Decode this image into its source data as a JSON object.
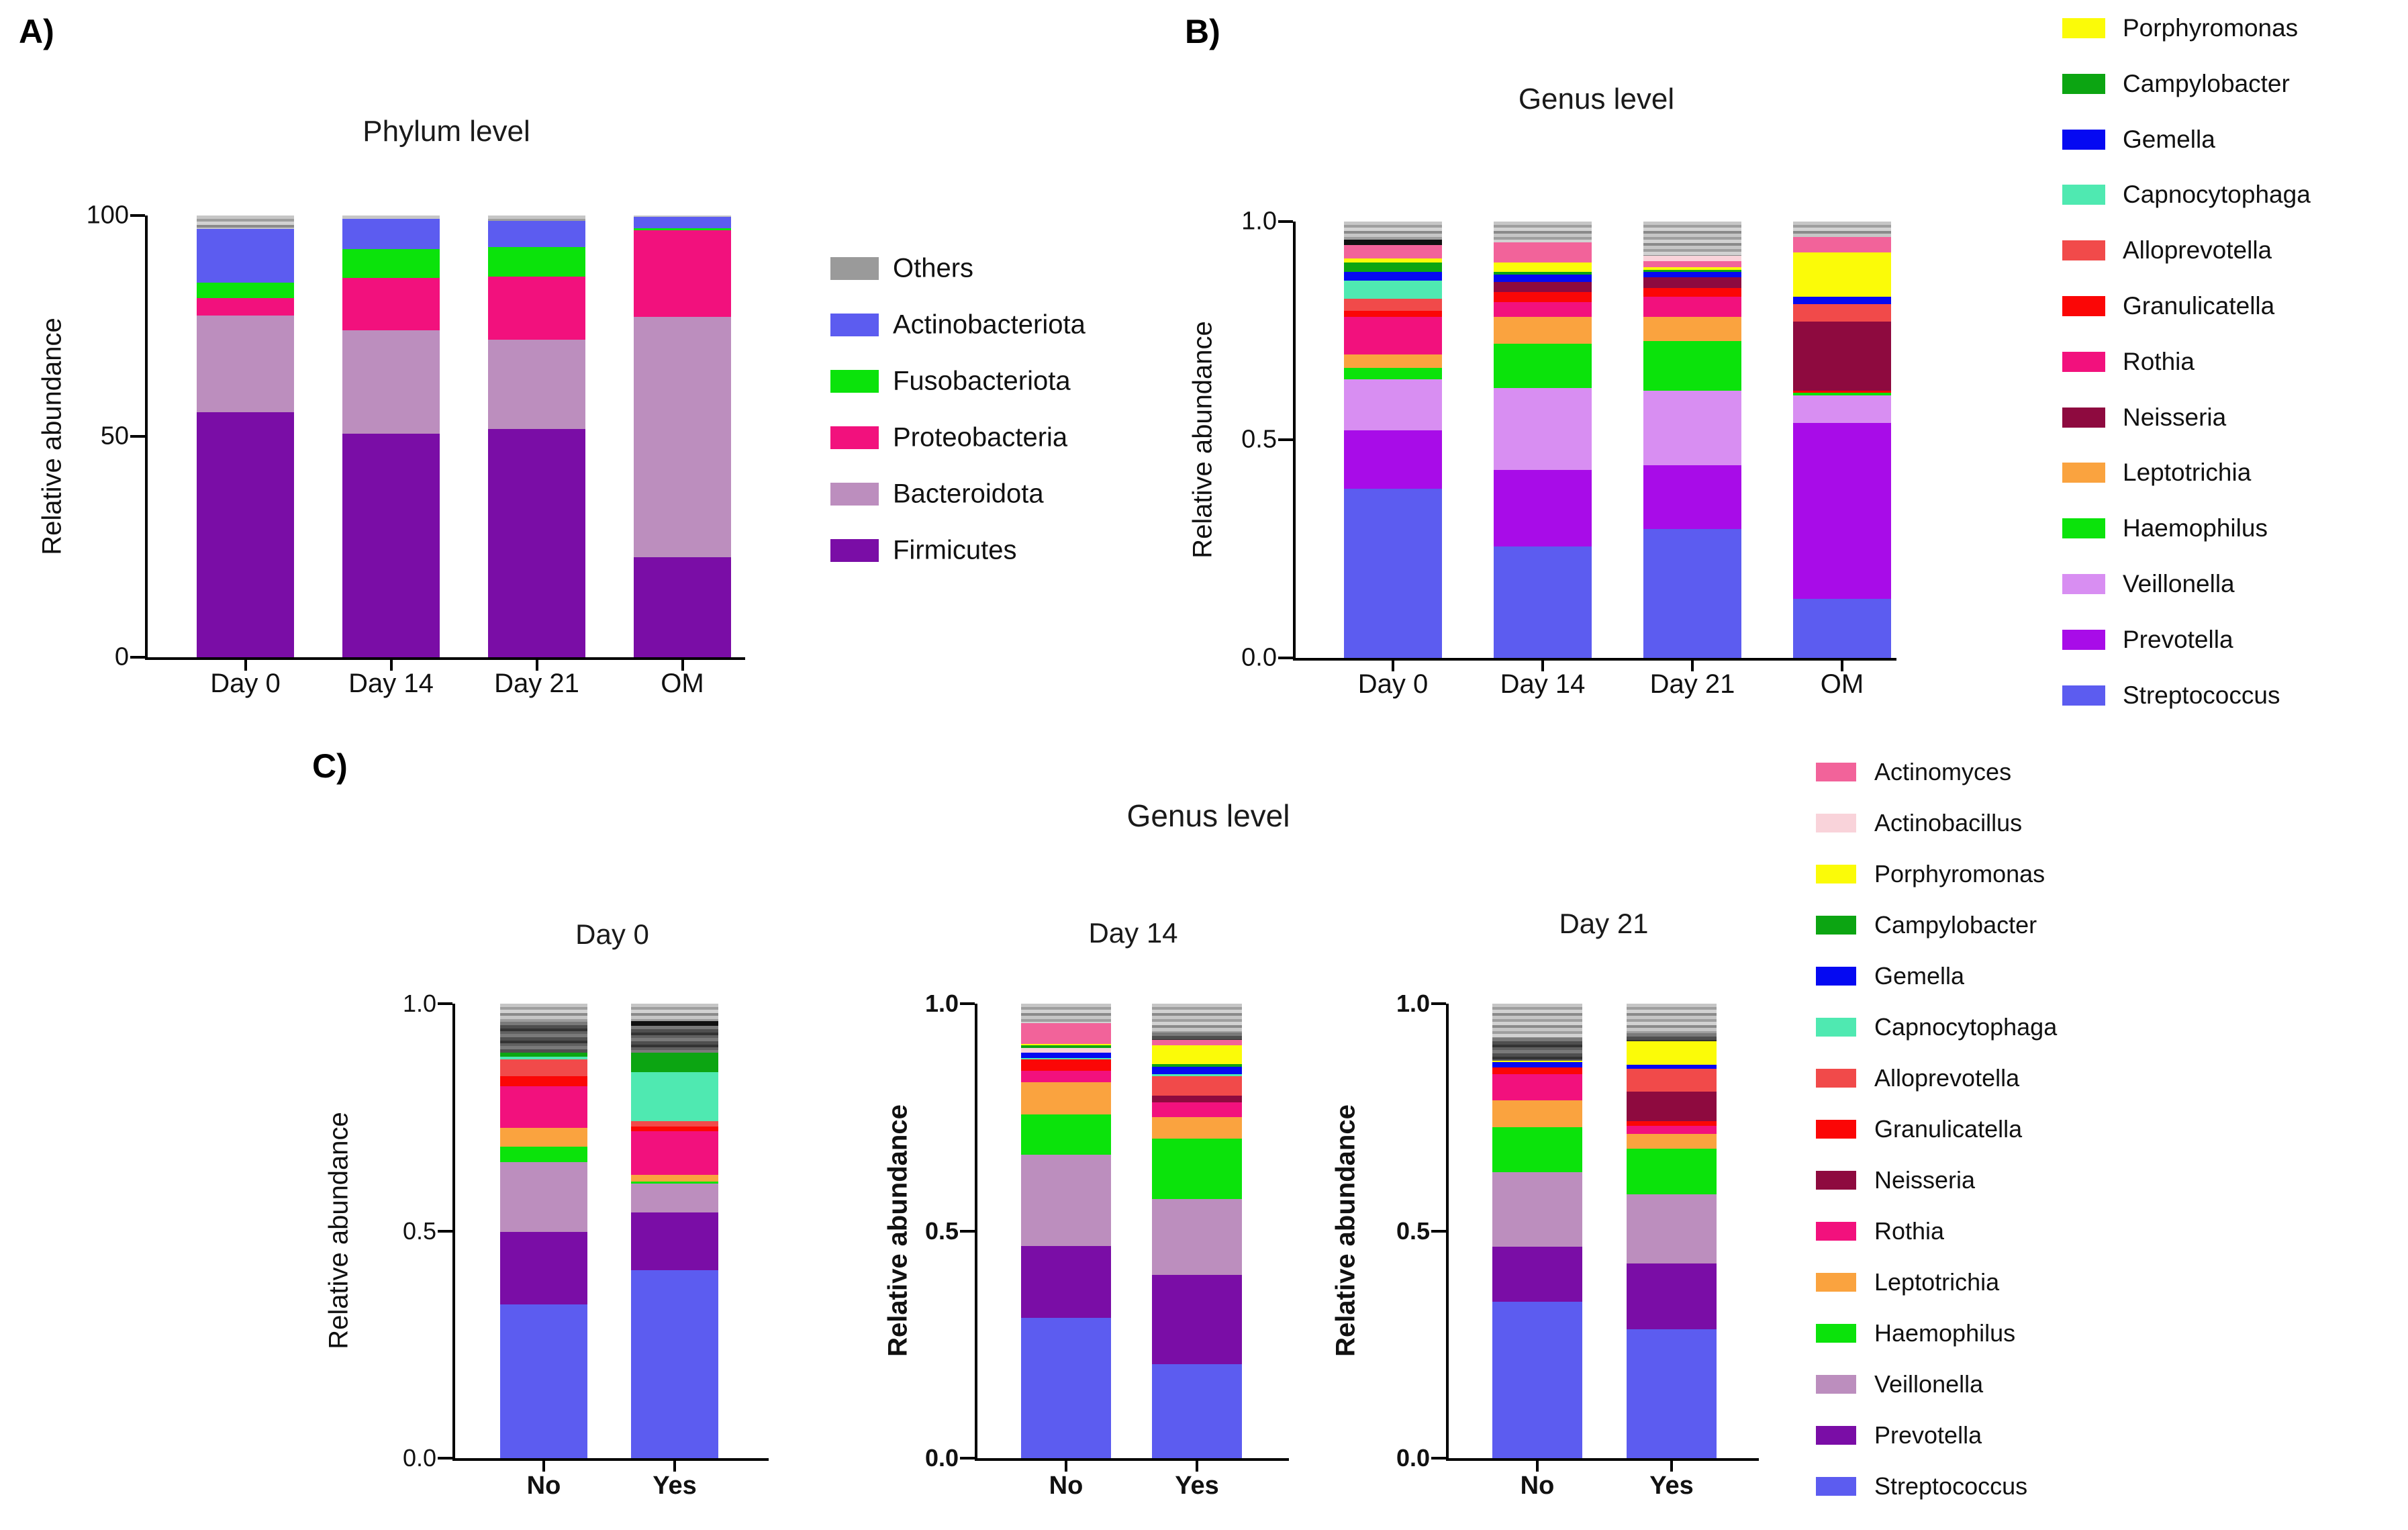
{
  "panels": {
    "a_label": "A)",
    "b_label": "B)",
    "c_label": "C)",
    "c_super_title": "Genus level"
  },
  "palette": {
    "streptococcus": "#5c5cf0",
    "prevotella": "#a80ce8",
    "prevotella_dark": "#7a0da6",
    "veillonella": "#d88ef2",
    "veillonella_mauve": "#bc8ebe",
    "haemophilus": "#0be30b",
    "leptotrichia": "#faa33f",
    "rothia": "#f2117d",
    "granulicatella": "#fb0606",
    "alloprevotella": "#f14a4a",
    "capnocytophaga": "#4fe9b1",
    "gemella": "#0509f2",
    "campylobacter": "#0ca512",
    "porphyromonas": "#fbfb08",
    "neisseria": "#8e0a3f",
    "actinomyces": "#f2639a",
    "actinobacillus": "#f9d3da",
    "firmicutes": "#7a0da6",
    "bacteroidota": "#bc8ebe",
    "proteobacteria": "#f2117d",
    "fusobacteriota": "#0be30b",
    "actinobacteriota": "#5c5cf0",
    "others": "#9a9a9a",
    "others_dark": "#4f4f4f",
    "black": "#111111"
  },
  "chart_data": [
    {
      "id": "A",
      "type": "stacked-bar",
      "title": "Phylum level",
      "ylabel": "Relative abundance",
      "ylim": [
        0,
        100
      ],
      "unit": 100,
      "yticks": [
        {
          "value": 100,
          "label": "100"
        },
        {
          "value": 50,
          "label": "50"
        },
        {
          "value": 0,
          "label": "0"
        }
      ],
      "categories": [
        "Day 0",
        "Day 14",
        "Day 21",
        "OM"
      ],
      "bars": [
        [
          [
            "firmicutes",
            55.5
          ],
          [
            "bacteroidota",
            21.9
          ],
          [
            "proteobacteria",
            3.9
          ],
          [
            "fusobacteriota",
            3.5
          ],
          [
            "actinobacteriota",
            12.2
          ],
          [
            "others",
            3.0
          ]
        ],
        [
          [
            "firmicutes",
            50.6
          ],
          [
            "bacteroidota",
            23.4
          ],
          [
            "proteobacteria",
            11.9
          ],
          [
            "fusobacteriota",
            6.5
          ],
          [
            "actinobacteriota",
            6.8
          ],
          [
            "others",
            0.8
          ]
        ],
        [
          [
            "firmicutes",
            51.7
          ],
          [
            "bacteroidota",
            20.2
          ],
          [
            "proteobacteria",
            14.3
          ],
          [
            "fusobacteriota",
            6.6
          ],
          [
            "actinobacteriota",
            6.0
          ],
          [
            "others",
            1.2
          ]
        ],
        [
          [
            "firmicutes",
            22.6
          ],
          [
            "bacteroidota",
            54.4
          ],
          [
            "proteobacteria",
            19.6
          ],
          [
            "fusobacteriota",
            0.5
          ],
          [
            "actinobacteriota",
            2.6
          ],
          [
            "others",
            0.3
          ]
        ]
      ]
    },
    {
      "id": "B",
      "type": "stacked-bar",
      "title": "Genus level",
      "ylabel": "Relative abundance",
      "ylim": [
        0,
        1
      ],
      "unit": 1,
      "yticks": [
        {
          "value": 1.0,
          "label": "1.0"
        },
        {
          "value": 0.5,
          "label": "0.5"
        },
        {
          "value": 0.0,
          "label": "0.0"
        }
      ],
      "categories": [
        "Day 0",
        "Day 14",
        "Day 21",
        "OM"
      ],
      "bars": [
        [
          [
            "streptococcus",
            0.388
          ],
          [
            "prevotella",
            0.134
          ],
          [
            "veillonella",
            0.117
          ],
          [
            "haemophilus",
            0.025
          ],
          [
            "leptotrichia",
            0.031
          ],
          [
            "rothia",
            0.086
          ],
          [
            "granulicatella",
            0.015
          ],
          [
            "alloprevotella",
            0.027
          ],
          [
            "capnocytophaga",
            0.042
          ],
          [
            "gemella",
            0.02
          ],
          [
            "campylobacter",
            0.022
          ],
          [
            "porphyromonas",
            0.009
          ],
          [
            "actinomyces",
            0.031
          ],
          [
            "black",
            0.011
          ],
          [
            "others",
            0.042
          ]
        ],
        [
          [
            "streptococcus",
            0.255
          ],
          [
            "prevotella",
            0.176
          ],
          [
            "veillonella",
            0.187
          ],
          [
            "haemophilus",
            0.102
          ],
          [
            "leptotrichia",
            0.062
          ],
          [
            "rothia",
            0.034
          ],
          [
            "granulicatella",
            0.023
          ],
          [
            "neisseria",
            0.023
          ],
          [
            "gemella",
            0.017
          ],
          [
            "campylobacter",
            0.006
          ],
          [
            "porphyromonas",
            0.022
          ],
          [
            "actinomyces",
            0.045
          ],
          [
            "others",
            0.048
          ]
        ],
        [
          [
            "streptococcus",
            0.295
          ],
          [
            "prevotella",
            0.147
          ],
          [
            "veillonella",
            0.17
          ],
          [
            "haemophilus",
            0.114
          ],
          [
            "leptotrichia",
            0.056
          ],
          [
            "rothia",
            0.046
          ],
          [
            "granulicatella",
            0.02
          ],
          [
            "neisseria",
            0.025
          ],
          [
            "gemella",
            0.011
          ],
          [
            "campylobacter",
            0.005
          ],
          [
            "porphyromonas",
            0.006
          ],
          [
            "actinomyces",
            0.015
          ],
          [
            "actinobacillus",
            0.011
          ],
          [
            "others",
            0.079
          ]
        ],
        [
          [
            "streptococcus",
            0.136
          ],
          [
            "prevotella",
            0.403
          ],
          [
            "veillonella",
            0.062
          ],
          [
            "haemophilus",
            0.006
          ],
          [
            "granulicatella",
            0.005
          ],
          [
            "neisseria",
            0.159
          ],
          [
            "alloprevotella",
            0.04
          ],
          [
            "gemella",
            0.017
          ],
          [
            "porphyromonas",
            0.102
          ],
          [
            "actinomyces",
            0.034
          ],
          [
            "others",
            0.036
          ]
        ]
      ]
    },
    {
      "id": "C-Day0",
      "type": "stacked-bar",
      "title": "Day 0",
      "ylabel": "Relative abundance",
      "ylim": [
        0,
        1
      ],
      "unit": 1,
      "yticks": [
        {
          "value": 1.0,
          "label": "1.0"
        },
        {
          "value": 0.5,
          "label": "0.5"
        },
        {
          "value": 0.0,
          "label": "0.0"
        }
      ],
      "categories": [
        "No",
        "Yes"
      ],
      "bars": [
        [
          [
            "streptococcus",
            0.338
          ],
          [
            "prevotella_dark",
            0.16
          ],
          [
            "veillonella_mauve",
            0.153
          ],
          [
            "haemophilus",
            0.034
          ],
          [
            "leptotrichia",
            0.042
          ],
          [
            "rothia",
            0.091
          ],
          [
            "granulicatella",
            0.023
          ],
          [
            "alloprevotella",
            0.036
          ],
          [
            "capnocytophaga",
            0.007
          ],
          [
            "campylobacter",
            0.008
          ],
          [
            "others_dark",
            0.068
          ],
          [
            "others",
            0.04
          ]
        ],
        [
          [
            "streptococcus",
            0.414
          ],
          [
            "prevotella_dark",
            0.126
          ],
          [
            "veillonella_mauve",
            0.064
          ],
          [
            "haemophilus",
            0.004
          ],
          [
            "leptotrichia",
            0.016
          ],
          [
            "rothia",
            0.095
          ],
          [
            "granulicatella",
            0.011
          ],
          [
            "alloprevotella",
            0.012
          ],
          [
            "capnocytophaga",
            0.108
          ],
          [
            "campylobacter",
            0.043
          ],
          [
            "others_dark",
            0.059
          ],
          [
            "black",
            0.01
          ],
          [
            "others",
            0.038
          ]
        ]
      ]
    },
    {
      "id": "C-Day14",
      "type": "stacked-bar",
      "title": "Day 14",
      "ylabel": "Relative abundance",
      "ylim": [
        0,
        1
      ],
      "unit": 1,
      "yticks": [
        {
          "value": 1.0,
          "label": "1.0"
        },
        {
          "value": 0.5,
          "label": "0.5"
        },
        {
          "value": 0.0,
          "label": "0.0"
        }
      ],
      "categories": [
        "No",
        "Yes"
      ],
      "bars": [
        [
          [
            "streptococcus",
            0.309
          ],
          [
            "prevotella_dark",
            0.158
          ],
          [
            "veillonella_mauve",
            0.2
          ],
          [
            "haemophilus",
            0.09
          ],
          [
            "leptotrichia",
            0.07
          ],
          [
            "rothia",
            0.025
          ],
          [
            "granulicatella",
            0.025
          ],
          [
            "capnocytophaga",
            0.004
          ],
          [
            "gemella",
            0.012
          ],
          [
            "actinobacillus",
            0.01
          ],
          [
            "campylobacter",
            0.005
          ],
          [
            "porphyromonas",
            0.004
          ],
          [
            "actinomyces",
            0.045
          ],
          [
            "others",
            0.043
          ]
        ],
        [
          [
            "streptococcus",
            0.207
          ],
          [
            "prevotella_dark",
            0.197
          ],
          [
            "veillonella_mauve",
            0.166
          ],
          [
            "haemophilus",
            0.133
          ],
          [
            "leptotrichia",
            0.047
          ],
          [
            "rothia",
            0.033
          ],
          [
            "neisseria",
            0.015
          ],
          [
            "alloprevotella",
            0.042
          ],
          [
            "capnocytophaga",
            0.005
          ],
          [
            "gemella",
            0.017
          ],
          [
            "campylobacter",
            0.005
          ],
          [
            "porphyromonas",
            0.042
          ],
          [
            "actinomyces",
            0.012
          ],
          [
            "others_dark",
            0.016
          ],
          [
            "others",
            0.063
          ]
        ]
      ]
    },
    {
      "id": "C-Day21",
      "type": "stacked-bar",
      "title": "Day 21",
      "ylabel": "Relative abundance",
      "ylim": [
        0,
        1
      ],
      "unit": 1,
      "yticks": [
        {
          "value": 1.0,
          "label": "1.0"
        },
        {
          "value": 0.5,
          "label": "0.5"
        },
        {
          "value": 0.0,
          "label": "0.0"
        }
      ],
      "categories": [
        "No",
        "Yes"
      ],
      "bars": [
        [
          [
            "streptococcus",
            0.344
          ],
          [
            "prevotella_dark",
            0.122
          ],
          [
            "veillonella_mauve",
            0.163
          ],
          [
            "haemophilus",
            0.099
          ],
          [
            "leptotrichia",
            0.06
          ],
          [
            "rothia",
            0.057
          ],
          [
            "granulicatella",
            0.015
          ],
          [
            "gemella",
            0.011
          ],
          [
            "porphyromonas",
            0.004
          ],
          [
            "others_dark",
            0.05
          ],
          [
            "others",
            0.075
          ]
        ],
        [
          [
            "streptococcus",
            0.284
          ],
          [
            "prevotella_dark",
            0.144
          ],
          [
            "veillonella_mauve",
            0.152
          ],
          [
            "haemophilus",
            0.101
          ],
          [
            "leptotrichia",
            0.033
          ],
          [
            "rothia",
            0.017
          ],
          [
            "granulicatella",
            0.01
          ],
          [
            "neisseria",
            0.065
          ],
          [
            "alloprevotella",
            0.051
          ],
          [
            "gemella",
            0.009
          ],
          [
            "porphyromonas",
            0.051
          ],
          [
            "others_dark",
            0.018
          ],
          [
            "others",
            0.065
          ]
        ]
      ]
    }
  ],
  "legends": {
    "A": [
      {
        "color": "others",
        "label": "Others"
      },
      {
        "color": "actinobacteriota",
        "label": "Actinobacteriota"
      },
      {
        "color": "fusobacteriota",
        "label": "Fusobacteriota"
      },
      {
        "color": "proteobacteria",
        "label": "Proteobacteria"
      },
      {
        "color": "bacteroidota",
        "label": "Bacteroidota"
      },
      {
        "color": "firmicutes",
        "label": "Firmicutes"
      }
    ],
    "B": [
      {
        "color": "porphyromonas",
        "label": "Porphyromonas"
      },
      {
        "color": "campylobacter",
        "label": "Campylobacter"
      },
      {
        "color": "gemella",
        "label": "Gemella"
      },
      {
        "color": "capnocytophaga",
        "label": "Capnocytophaga"
      },
      {
        "color": "alloprevotella",
        "label": "Alloprevotella"
      },
      {
        "color": "granulicatella",
        "label": "Granulicatella"
      },
      {
        "color": "rothia",
        "label": "Rothia"
      },
      {
        "color": "neisseria",
        "label": "Neisseria"
      },
      {
        "color": "leptotrichia",
        "label": "Leptotrichia"
      },
      {
        "color": "haemophilus",
        "label": "Haemophilus"
      },
      {
        "color": "veillonella",
        "label": "Veillonella"
      },
      {
        "color": "prevotella",
        "label": "Prevotella"
      },
      {
        "color": "streptococcus",
        "label": "Streptococcus"
      }
    ],
    "C": [
      {
        "color": "actinomyces",
        "label": "Actinomyces"
      },
      {
        "color": "actinobacillus",
        "label": "Actinobacillus"
      },
      {
        "color": "porphyromonas",
        "label": "Porphyromonas"
      },
      {
        "color": "campylobacter",
        "label": "Campylobacter"
      },
      {
        "color": "gemella",
        "label": "Gemella"
      },
      {
        "color": "capnocytophaga",
        "label": "Capnocytophaga"
      },
      {
        "color": "alloprevotella",
        "label": "Alloprevotella"
      },
      {
        "color": "granulicatella",
        "label": "Granulicatella"
      },
      {
        "color": "neisseria",
        "label": "Neisseria"
      },
      {
        "color": "rothia",
        "label": "Rothia"
      },
      {
        "color": "leptotrichia",
        "label": "Leptotrichia"
      },
      {
        "color": "haemophilus",
        "label": "Haemophilus"
      },
      {
        "color": "veillonella_mauve",
        "label": "Veillonella"
      },
      {
        "color": "prevotella_dark",
        "label": "Prevotella"
      },
      {
        "color": "streptococcus",
        "label": "Streptococcus"
      }
    ]
  }
}
